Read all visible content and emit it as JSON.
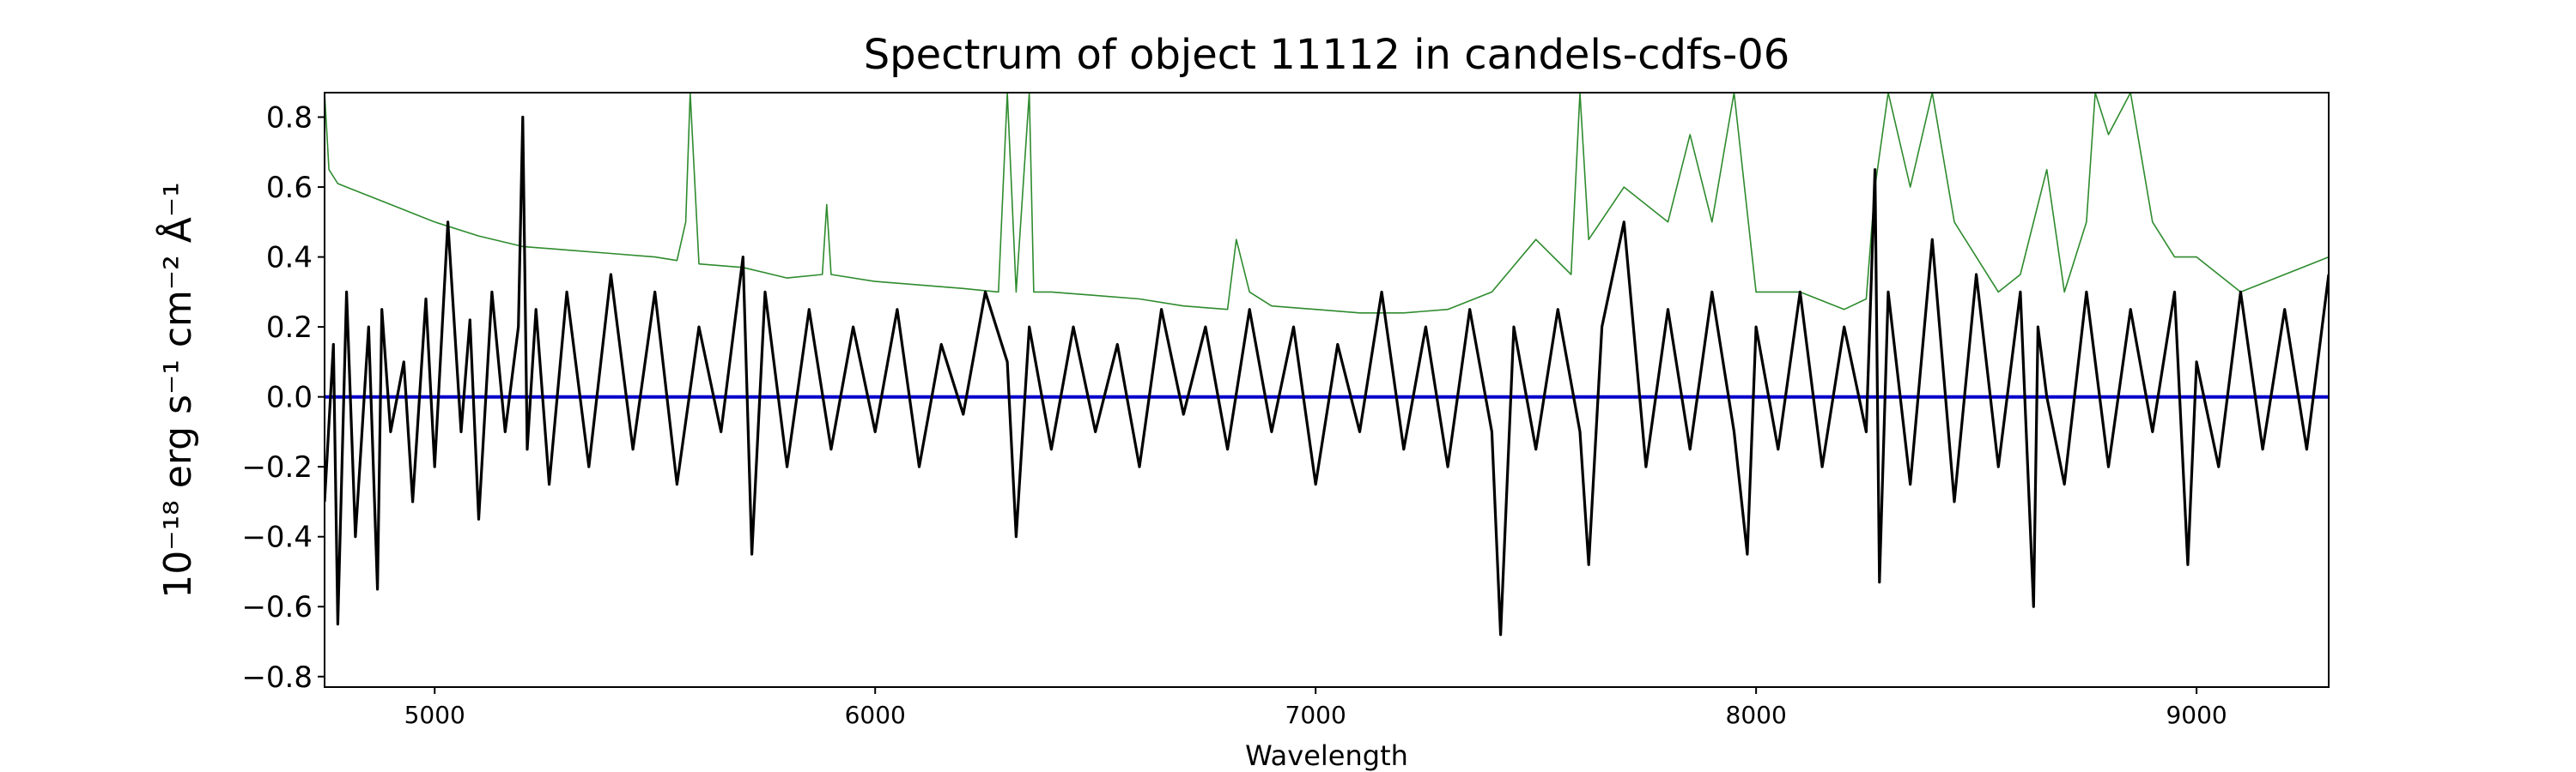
{
  "chart_data": {
    "type": "line",
    "title": "Spectrum of object 11112 in candels-cdfs-06",
    "xlabel": "Wavelength",
    "ylabel": "10⁻¹⁸ erg s⁻¹ cm⁻² Å⁻¹",
    "xlim": [
      4750,
      9300
    ],
    "ylim": [
      -0.83,
      0.87
    ],
    "xticks": [
      5000,
      6000,
      7000,
      8000,
      9000
    ],
    "xtick_labels": [
      "5000",
      "6000",
      "7000",
      "8000",
      "9000"
    ],
    "yticks": [
      -0.8,
      -0.6,
      -0.4,
      -0.2,
      0.0,
      0.2,
      0.4,
      0.6,
      0.8
    ],
    "ytick_labels": [
      "−0.8",
      "−0.6",
      "−0.4",
      "−0.2",
      "0.0",
      "0.2",
      "0.4",
      "0.6",
      "0.8"
    ],
    "grid": false,
    "colors": {
      "flux": "#000000",
      "error": "#2e8b2e",
      "zero": "#0000cc"
    },
    "series": [
      {
        "role": "flux",
        "x": [
          4750,
          4770,
          4780,
          4800,
          4820,
          4850,
          4870,
          4880,
          4900,
          4930,
          4950,
          4980,
          5000,
          5030,
          5060,
          5080,
          5100,
          5130,
          5160,
          5190,
          5200,
          5210,
          5230,
          5260,
          5300,
          5350,
          5400,
          5450,
          5500,
          5550,
          5600,
          5650,
          5700,
          5720,
          5750,
          5800,
          5850,
          5900,
          5950,
          6000,
          6050,
          6100,
          6150,
          6200,
          6250,
          6300,
          6320,
          6350,
          6400,
          6450,
          6500,
          6550,
          6600,
          6650,
          6700,
          6750,
          6800,
          6850,
          6900,
          6950,
          7000,
          7050,
          7100,
          7150,
          7200,
          7250,
          7300,
          7350,
          7400,
          7420,
          7450,
          7500,
          7550,
          7600,
          7620,
          7650,
          7700,
          7750,
          7800,
          7850,
          7900,
          7950,
          7980,
          8000,
          8050,
          8100,
          8150,
          8200,
          8250,
          8270,
          8280,
          8300,
          8350,
          8400,
          8450,
          8500,
          8550,
          8600,
          8630,
          8640,
          8660,
          8700,
          8750,
          8800,
          8850,
          8900,
          8950,
          8980,
          9000,
          9050,
          9100,
          9150,
          9200,
          9250,
          9300
        ],
        "y": [
          -0.3,
          0.15,
          -0.65,
          0.3,
          -0.4,
          0.2,
          -0.55,
          0.25,
          -0.1,
          0.1,
          -0.3,
          0.28,
          -0.2,
          0.5,
          -0.1,
          0.22,
          -0.35,
          0.3,
          -0.1,
          0.2,
          0.8,
          -0.15,
          0.25,
          -0.25,
          0.3,
          -0.2,
          0.35,
          -0.15,
          0.3,
          -0.25,
          0.2,
          -0.1,
          0.4,
          -0.45,
          0.3,
          -0.2,
          0.25,
          -0.15,
          0.2,
          -0.1,
          0.25,
          -0.2,
          0.15,
          -0.05,
          0.3,
          0.1,
          -0.4,
          0.2,
          -0.15,
          0.2,
          -0.1,
          0.15,
          -0.2,
          0.25,
          -0.05,
          0.2,
          -0.15,
          0.25,
          -0.1,
          0.2,
          -0.25,
          0.15,
          -0.1,
          0.3,
          -0.15,
          0.2,
          -0.2,
          0.25,
          -0.1,
          -0.68,
          0.2,
          -0.15,
          0.25,
          -0.1,
          -0.48,
          0.2,
          0.5,
          -0.2,
          0.25,
          -0.15,
          0.3,
          -0.1,
          -0.45,
          0.2,
          -0.15,
          0.3,
          -0.2,
          0.2,
          -0.1,
          0.65,
          -0.53,
          0.3,
          -0.25,
          0.45,
          -0.3,
          0.35,
          -0.2,
          0.3,
          -0.6,
          0.2,
          0.0,
          -0.25,
          0.3,
          -0.2,
          0.25,
          -0.1,
          0.3,
          -0.48,
          0.1,
          -0.2,
          0.3,
          -0.15,
          0.25,
          -0.15,
          0.35
        ]
      },
      {
        "role": "error",
        "x": [
          4750,
          4760,
          4780,
          4800,
          4900,
          5000,
          5100,
          5200,
          5300,
          5400,
          5500,
          5550,
          5570,
          5580,
          5600,
          5700,
          5800,
          5880,
          5890,
          5900,
          6000,
          6100,
          6200,
          6280,
          6300,
          6320,
          6350,
          6360,
          6400,
          6500,
          6600,
          6700,
          6800,
          6820,
          6850,
          6900,
          7000,
          7100,
          7200,
          7300,
          7400,
          7500,
          7580,
          7600,
          7620,
          7700,
          7800,
          7850,
          7900,
          7950,
          8000,
          8100,
          8200,
          8250,
          8270,
          8300,
          8350,
          8400,
          8450,
          8500,
          8550,
          8600,
          8640,
          8660,
          8700,
          8750,
          8770,
          8800,
          8850,
          8900,
          8950,
          9000,
          9100,
          9200,
          9300
        ],
        "y": [
          0.87,
          0.65,
          0.61,
          0.6,
          0.55,
          0.5,
          0.46,
          0.43,
          0.42,
          0.41,
          0.4,
          0.39,
          0.5,
          0.87,
          0.38,
          0.37,
          0.34,
          0.35,
          0.55,
          0.35,
          0.33,
          0.32,
          0.31,
          0.3,
          0.87,
          0.3,
          0.87,
          0.3,
          0.3,
          0.29,
          0.28,
          0.26,
          0.25,
          0.45,
          0.3,
          0.26,
          0.25,
          0.24,
          0.24,
          0.25,
          0.3,
          0.45,
          0.35,
          0.87,
          0.45,
          0.6,
          0.5,
          0.75,
          0.5,
          0.87,
          0.3,
          0.3,
          0.25,
          0.28,
          0.6,
          0.87,
          0.6,
          0.87,
          0.5,
          0.4,
          0.3,
          0.35,
          0.55,
          0.65,
          0.3,
          0.5,
          0.87,
          0.75,
          0.87,
          0.5,
          0.4,
          0.4,
          0.3,
          0.35,
          0.4
        ]
      },
      {
        "role": "zero",
        "x": [
          4750,
          9300
        ],
        "y": [
          0,
          0
        ]
      }
    ]
  }
}
